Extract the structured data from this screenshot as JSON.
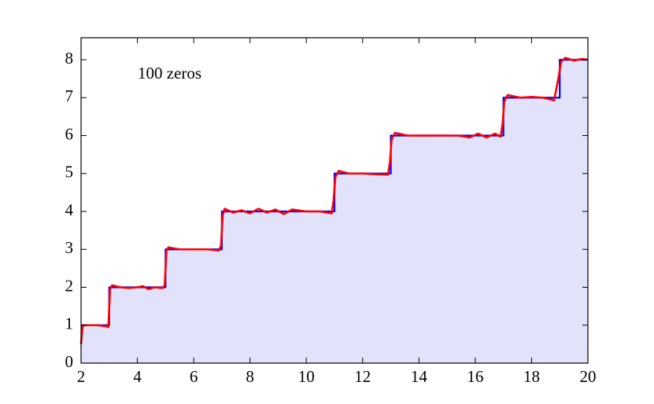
{
  "chart_data": {
    "type": "line",
    "annotation": "100 zeros",
    "series": [
      {
        "color": "#0000ff",
        "fill": "#e2e2fb",
        "x": [
          2,
          3,
          3,
          5,
          5,
          7,
          7,
          11,
          11,
          13,
          13,
          17,
          17,
          19,
          19,
          20
        ],
        "values": [
          1,
          1,
          2,
          2,
          3,
          3,
          4,
          4,
          5,
          5,
          6,
          6,
          7,
          7,
          8,
          8
        ]
      },
      {
        "color": "#ff0000",
        "x": [
          2,
          2.05,
          2.1,
          2.3,
          2.6,
          2.9,
          2.97,
          3.03,
          3.1,
          3.4,
          3.7,
          4.0,
          4.2,
          4.4,
          4.6,
          4.9,
          4.97,
          5.03,
          5.1,
          5.5,
          6.0,
          6.5,
          6.9,
          6.97,
          7.03,
          7.1,
          7.4,
          7.7,
          8.0,
          8.3,
          8.6,
          8.9,
          9.2,
          9.5,
          10.0,
          10.5,
          10.9,
          10.97,
          11.03,
          11.15,
          11.5,
          12.0,
          12.5,
          12.9,
          12.97,
          13.03,
          13.15,
          13.6,
          14.2,
          14.8,
          15.4,
          15.8,
          16.1,
          16.4,
          16.7,
          16.9,
          16.97,
          17.03,
          17.15,
          17.6,
          18.0,
          18.4,
          18.8,
          18.95,
          19.05,
          19.2,
          19.5,
          19.8,
          20
        ],
        "values": [
          0.5,
          0.95,
          1.0,
          1.0,
          1.0,
          0.97,
          0.95,
          1.95,
          2.05,
          2.0,
          1.98,
          2.0,
          2.03,
          1.95,
          2.0,
          1.98,
          2.05,
          2.95,
          3.05,
          3.0,
          3.0,
          3.0,
          2.97,
          3.1,
          3.9,
          4.07,
          3.97,
          4.03,
          3.95,
          4.07,
          3.97,
          4.05,
          3.93,
          4.05,
          4.0,
          4.0,
          3.95,
          4.3,
          4.9,
          5.07,
          5.0,
          5.0,
          4.98,
          4.97,
          5.3,
          5.9,
          6.07,
          6.0,
          6.0,
          6.0,
          6.0,
          5.95,
          6.05,
          5.95,
          6.05,
          5.97,
          6.3,
          6.9,
          7.07,
          7.0,
          7.02,
          7.0,
          6.93,
          7.5,
          7.95,
          8.05,
          7.98,
          8.02,
          8.0
        ]
      }
    ],
    "xlim": [
      2,
      20
    ],
    "xticks": [
      2,
      4,
      6,
      8,
      10,
      12,
      14,
      16,
      18,
      20
    ],
    "ylim": [
      0,
      8.58
    ],
    "yticks": [
      0,
      1,
      2,
      3,
      4,
      5,
      6,
      7,
      8
    ]
  }
}
